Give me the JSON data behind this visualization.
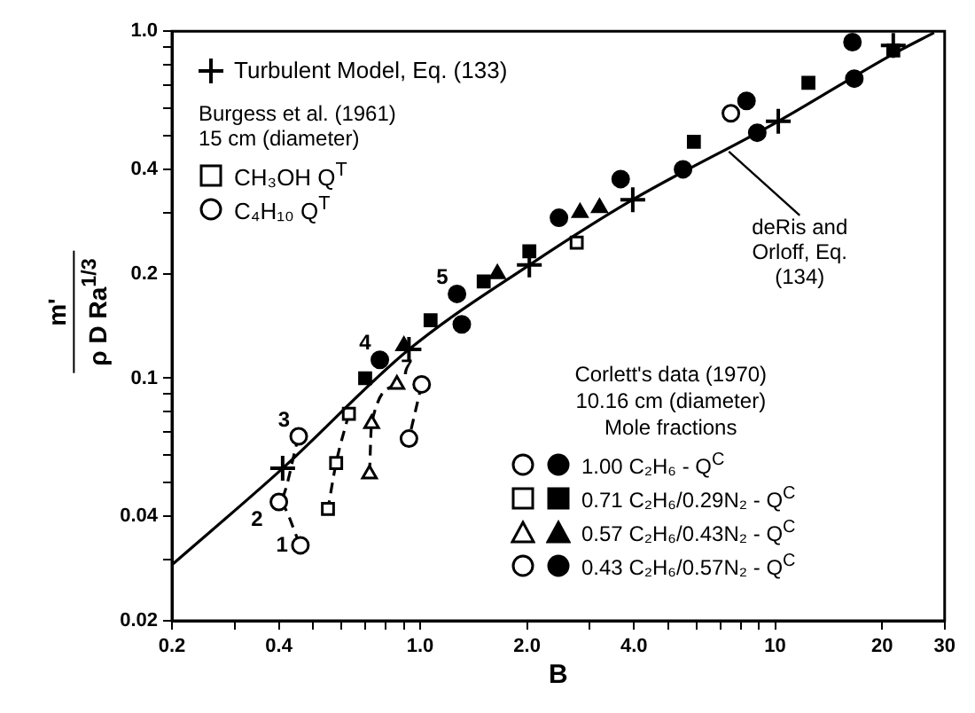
{
  "chart_data": {
    "type": "scatter",
    "xlabel": "B",
    "ylabel": "m'\nρ D Ra$^{1/3}$",
    "log": "xy",
    "grid": false,
    "legend": "top left",
    "xlim": [
      0.2,
      30
    ],
    "ylim": [
      0.02,
      1.0
    ],
    "xticks": [
      0.2,
      {
        "value": 0.3,
        "label": null
      },
      0.4,
      {
        "value": 0.5,
        "label": null
      },
      {
        "value": 0.6,
        "label": null
      },
      {
        "value": 0.7,
        "label": null
      },
      {
        "value": 0.8,
        "label": null
      },
      {
        "value": 0.9,
        "label": null
      },
      {
        "value": 1,
        "label": "1.0"
      },
      {
        "value": 2,
        "label": "2.0"
      },
      {
        "value": 3,
        "label": null
      },
      {
        "value": 4,
        "label": "4.0"
      },
      {
        "value": 5,
        "label": null
      },
      {
        "value": 6,
        "label": null
      },
      {
        "value": 7,
        "label": null
      },
      {
        "value": 8,
        "label": null
      },
      {
        "value": 9,
        "label": null
      },
      10,
      20,
      30
    ],
    "yticks": [
      0.02,
      {
        "value": 0.03,
        "label": null
      },
      0.04,
      {
        "value": 0.05,
        "label": null
      },
      {
        "value": 0.06,
        "label": null
      },
      {
        "value": 0.07,
        "label": null
      },
      {
        "value": 0.08,
        "label": null
      },
      {
        "value": 0.09,
        "label": null
      },
      0.1,
      0.2,
      {
        "value": 0.3,
        "label": null
      },
      0.4,
      {
        "value": 0.5,
        "label": null
      },
      {
        "value": 0.6,
        "label": null
      },
      {
        "value": 0.7,
        "label": null
      },
      {
        "value": 0.8,
        "label": null
      },
      {
        "value": 0.9,
        "label": null
      },
      {
        "value": 1,
        "label": "1.0"
      }
    ],
    "series": [
      {
        "name": "Turbulent Model, Eq. (133)",
        "marker": "cross",
        "color": "#000000",
        "x": [
          0.41,
          0.93,
          2.03,
          3.97,
          10.2,
          21.5
        ],
        "values": [
          0.055,
          0.121,
          0.212,
          0.327,
          0.55,
          0.91
        ]
      },
      {
        "name": "CH₃OH  Q$^{T}$",
        "marker": "square",
        "color": "#ffffff",
        "x": [
          2.76
        ],
        "values": [
          0.246
        ]
      },
      {
        "name": "C₄H₁₀  Q$^{T}$",
        "marker": "circle",
        "color": "#ffffff",
        "x": [
          7.5
        ],
        "values": [
          0.58
        ]
      },
      {
        "type": "line",
        "marker": "none",
        "color": "#000000",
        "x": [
          0.2,
          0.41,
          0.93,
          2.03,
          3.97,
          10.2,
          21.5,
          28
        ],
        "values": [
          0.029,
          0.055,
          0.121,
          0.212,
          0.327,
          0.55,
          0.86,
          0.99
        ]
      },
      {
        "type": "line",
        "line_style": "dashed",
        "marker": "circle",
        "color": "#ffffff",
        "x": [
          0.455,
          0.4,
          0.46
        ],
        "values": [
          0.068,
          0.044,
          0.033
        ]
      },
      {
        "name": "1.00 C₂H₆ - Q$^{C}$",
        "marker": "circle",
        "color": "#000000",
        "x": [
          0.77,
          1.27,
          2.46,
          3.67,
          8.3,
          16.5
        ],
        "values": [
          0.113,
          0.175,
          0.29,
          0.375,
          0.63,
          0.93
        ]
      },
      {
        "type": "line",
        "line_style": "dashed",
        "marker": "square",
        "color": "#ffffff",
        "x": [
          0.63,
          0.58,
          0.55
        ],
        "values": [
          0.079,
          0.057,
          0.042
        ]
      },
      {
        "name": "0.71 C₂H₆/0.29N₂ - Q$^{C}$",
        "marker": "square",
        "color": "#000000",
        "x": [
          0.7,
          1.07,
          1.51,
          2.03,
          5.9,
          12.4,
          21.5
        ],
        "values": [
          0.1,
          0.147,
          0.19,
          0.232,
          0.48,
          0.71,
          0.88
        ]
      },
      {
        "type": "line",
        "line_style": "dashed",
        "marker": "triangle",
        "color": "#ffffff",
        "x": [
          0.86,
          0.73,
          0.72
        ],
        "values": [
          0.096,
          0.074,
          0.053
        ]
      },
      {
        "name": "0.57 C₂H₆/0.43N₂ - Q$^{C}$",
        "marker": "triangle",
        "color": "#000000",
        "x": [
          0.9,
          1.65,
          2.82,
          3.2
        ],
        "values": [
          0.124,
          0.2,
          0.3,
          0.31
        ]
      },
      {
        "type": "line",
        "line_style": "dashed",
        "marker": "circle",
        "color": "#ffffff",
        "x": [
          1.01,
          0.93
        ],
        "values": [
          0.096,
          0.067
        ]
      },
      {
        "name": "0.43 C₂H₆/0.57N₂ - Q$^{C}$",
        "marker": "circle",
        "color": "#000000",
        "x": [
          1.31,
          5.5,
          8.9,
          16.7
        ],
        "values": [
          0.143,
          0.4,
          0.51,
          0.73
        ]
      }
    ],
    "annotations": [
      "Burgess et al. (1961)",
      "15 cm (diameter)",
      "Corlett's data (1970)",
      "10.16 cm (diameter)",
      "Mole fractions",
      {
        "text": "deRis and Orloff, Eq. (134)",
        "x": 7.4,
        "y": 0.45
      },
      {
        "text": "1",
        "x": 0.46,
        "y": 0.033
      },
      {
        "text": "2",
        "x": 0.4,
        "y": 0.044
      },
      {
        "text": "3",
        "x": 0.455,
        "y": 0.068
      },
      {
        "text": "4",
        "x": 0.77,
        "y": 0.113
      },
      {
        "text": "5",
        "x": 1.27,
        "y": 0.175
      },
      {
        "text": "7",
        "x": 1.01,
        "y": 0.096
      }
    ]
  }
}
